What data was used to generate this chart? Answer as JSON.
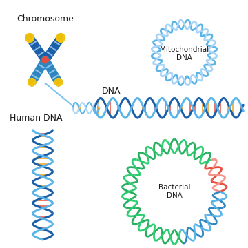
{
  "background_color": "#ffffff",
  "labels": {
    "chromosome": "Chromosome",
    "dna": "DNA",
    "mitochondrial": "Mitochondrial\nDNA",
    "human_dna": "Human DNA",
    "bacterial": "Bacterial\nDNA"
  },
  "colors": {
    "blue_dark": "#1a5fa8",
    "blue_light": "#5ab4e8",
    "blue_mid": "#2e86c1",
    "blue_pale": "#aad4f5",
    "orange": "#f39c12",
    "red": "#e74c3c",
    "yellow": "#f1c40f",
    "yellow2": "#e8b800",
    "green": "#27ae60",
    "green_light": "#2ecc71",
    "pink": "#f1948a",
    "white": "#ffffff",
    "text": "#1a1a1a"
  }
}
